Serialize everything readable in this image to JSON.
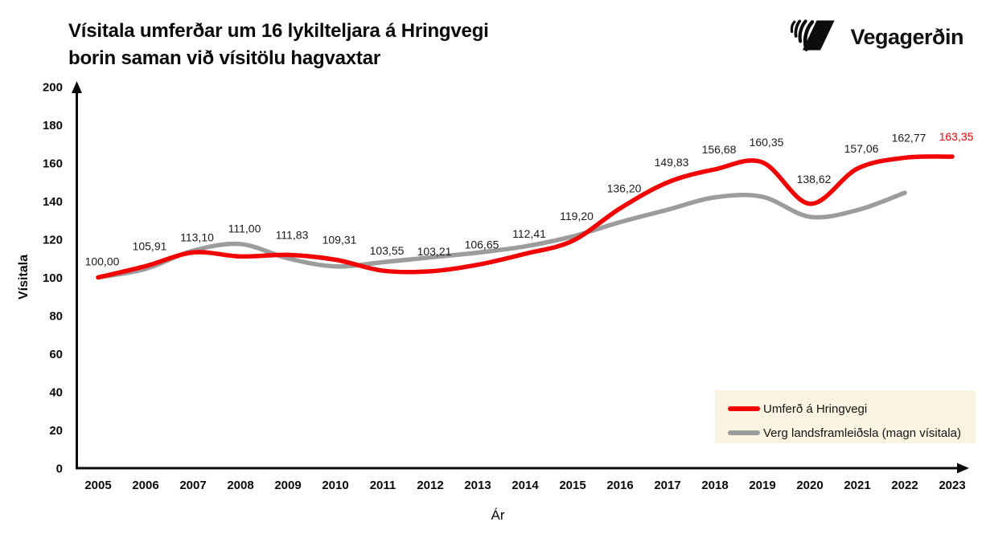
{
  "header": {
    "title_line1": "Vísitala umferðar um 16 lykilteljara á Hringvegi",
    "title_line2": "borin saman við vísitölu hagvaxtar",
    "logo_text": "Vegagerðin",
    "logo_icon": "vegagerdin-stripes-mark"
  },
  "chart_data": {
    "type": "line",
    "title": "Vísitala umferðar um 16 lykilteljara á Hringvegi borin saman við vísitölu hagvaxtar",
    "xlabel": "Ár",
    "ylabel": "Vísitala",
    "ylim": [
      0,
      200
    ],
    "ytick_labels": [
      "0",
      "20",
      "40",
      "60",
      "80",
      "100",
      "120",
      "140",
      "160",
      "180",
      "200"
    ],
    "ytick_values": [
      0,
      20,
      40,
      60,
      80,
      100,
      120,
      140,
      160,
      180,
      200
    ],
    "x_labels": [
      "2005",
      "2006",
      "2007",
      "2008",
      "2009",
      "2010",
      "2011",
      "2012",
      "2013",
      "2014",
      "2015",
      "2016",
      "2017",
      "2018",
      "2019",
      "2020",
      "2021",
      "2022",
      "2023"
    ],
    "grid": false,
    "legend_position": "inside-bottom-right-box",
    "series": [
      {
        "name": "Verg landsframleiðsla (magn vísitala)",
        "color": "#9c9c9c",
        "values": [
          100,
          104.5,
          114,
          117.5,
          110,
          105.8,
          108,
          110.5,
          113,
          116.3,
          121.5,
          129,
          135.5,
          142,
          142.3,
          131.8,
          135.3,
          144.4
        ],
        "point_labels": null
      },
      {
        "name": "Umferð á Hringvegi",
        "color": "#f40000",
        "values": [
          100.0,
          105.91,
          113.1,
          111.0,
          111.83,
          109.31,
          103.55,
          103.21,
          106.65,
          112.41,
          119.2,
          136.2,
          149.83,
          156.68,
          160.35,
          138.62,
          157.06,
          162.77,
          163.35
        ],
        "point_labels": [
          "100,00",
          "105,91",
          "113,10",
          "111,00",
          "111,83",
          "109,31",
          "103,55",
          "103,21",
          "106,65",
          "112,41",
          "119,20",
          "136,20",
          "149,83",
          "156,68",
          "160,35",
          "138,62",
          "157,06",
          "162,77",
          "163,35"
        ],
        "last_label_color": "#f40000"
      }
    ]
  },
  "legend": {
    "background": "#fbf3e2",
    "items": [
      {
        "label": "Umferð á Hringvegi",
        "color": "#f40000"
      },
      {
        "label": "Verg landsframleiðsla (magn vísitala)",
        "color": "#9c9c9c"
      }
    ]
  },
  "colors": {
    "axis": "#0a0a0a",
    "tick_text": "#0a0a0a",
    "data_label": "#1a1a1a",
    "accent_red": "#f40000",
    "series_gray": "#9c9c9c",
    "legend_background": "#fbf3e2"
  }
}
